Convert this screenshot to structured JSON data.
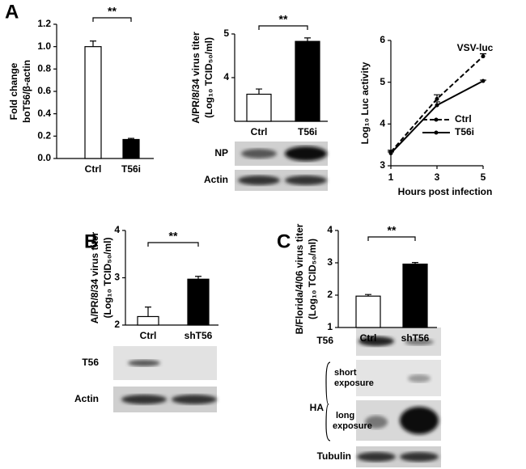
{
  "panels": [
    "A",
    "B",
    "C"
  ],
  "chart_data": [
    {
      "type": "bar",
      "ylabel": [
        "Fold change",
        "boT56/β-actin"
      ],
      "categories": [
        "Ctrl",
        "T56i"
      ],
      "values": [
        1.0,
        0.17
      ],
      "errors": [
        0.05,
        0.01
      ],
      "colors": [
        "#ffffff",
        "#000000"
      ],
      "ylim": [
        0,
        1.2
      ],
      "yticks": [
        {
          "value": 0,
          "label": "0.0"
        },
        0.2,
        0.4,
        0.6,
        0.8,
        {
          "value": 1,
          "label": "1.0"
        },
        1.2
      ],
      "annotation": "**"
    },
    {
      "type": "bar",
      "ylabel": [
        "A/PR/8/34 virus titer",
        "(Log₁₀ TCID₅₀/ml)"
      ],
      "categories": [
        "Ctrl",
        "T56i"
      ],
      "values": [
        3.62,
        4.83
      ],
      "errors": [
        0.12,
        0.08
      ],
      "colors": [
        "#ffffff",
        "#000000"
      ],
      "ylim": [
        3,
        5
      ],
      "yticks": [
        4,
        5
      ],
      "annotation": "**"
    },
    {
      "type": "line",
      "title": "VSV-luc",
      "xlabel": "Hours post infection",
      "ylabel": [
        "Log₁₀ Luc activity"
      ],
      "x": [
        1,
        3,
        5
      ],
      "xlim": [
        1,
        5
      ],
      "xticks": [
        1,
        3,
        5
      ],
      "ylim": [
        3,
        6
      ],
      "yticks": [
        3,
        4,
        5,
        6
      ],
      "legend": "right",
      "series": [
        {
          "name": "Ctrl",
          "color": "#000000",
          "dashed": true,
          "values": [
            3.33,
            4.6,
            5.62
          ],
          "errors": [
            0.04,
            0.1,
            0.06
          ]
        },
        {
          "name": "T56i",
          "color": "#000000",
          "dashed": false,
          "values": [
            3.3,
            4.45,
            5.03
          ],
          "errors": [
            0.03,
            0.08,
            0.02
          ]
        }
      ]
    },
    {
      "type": "bar",
      "ylabel": [
        "A/PR/8/34 virus titer",
        "(Log₁₀ TCID₅₀/ml)"
      ],
      "categories": [
        "Ctrl",
        "shT56"
      ],
      "values": [
        2.18,
        2.97
      ],
      "errors": [
        0.2,
        0.06
      ],
      "colors": [
        "#ffffff",
        "#000000"
      ],
      "ylim": [
        2,
        4
      ],
      "yticks": [
        2,
        3,
        4
      ],
      "annotation": "**"
    },
    {
      "type": "bar",
      "ylabel": [
        "B/Florida/4/06 virus titer",
        "(Log₁₀ TCID₅₀/ml)"
      ],
      "categories": [
        "Ctrl",
        "shT56"
      ],
      "values": [
        1.97,
        2.96
      ],
      "errors": [
        0.05,
        0.05
      ],
      "colors": [
        "#ffffff",
        "#000000"
      ],
      "ylim": [
        1,
        4
      ],
      "yticks": [
        1,
        2,
        3,
        4
      ],
      "annotation": "**"
    }
  ],
  "blots": {
    "A": [
      "NP",
      "Actin"
    ],
    "B": [
      "T56",
      "Actin"
    ],
    "C": {
      "top": "T56",
      "group": "HA",
      "short": [
        "short",
        "exposure"
      ],
      "long": [
        "long",
        "exposure"
      ],
      "bottom": "Tubulin"
    }
  }
}
